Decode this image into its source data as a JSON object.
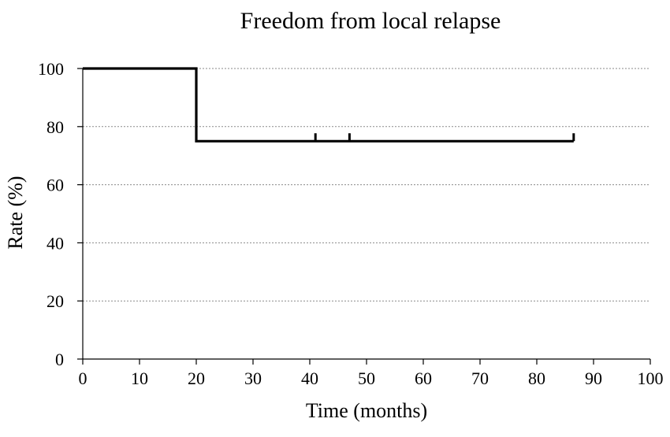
{
  "chart_data": {
    "type": "line",
    "title": "Freedom from local relapse",
    "xlabel": "Time (months)",
    "ylabel": "Rate (%)",
    "xlim": [
      0,
      100
    ],
    "ylim": [
      0,
      100
    ],
    "xticks": [
      0,
      10,
      20,
      30,
      40,
      50,
      60,
      70,
      80,
      90,
      100
    ],
    "yticks": [
      0,
      20,
      40,
      60,
      80,
      100
    ],
    "grid": "horizontal dotted",
    "series": [
      {
        "step_points": [
          {
            "x": 0,
            "y": 100
          },
          {
            "x": 20,
            "y": 100
          },
          {
            "x": 20,
            "y": 75
          },
          {
            "x": 86.5,
            "y": 75
          }
        ],
        "censored_x": [
          41,
          47,
          86.5
        ],
        "color": "#000000"
      }
    ]
  }
}
